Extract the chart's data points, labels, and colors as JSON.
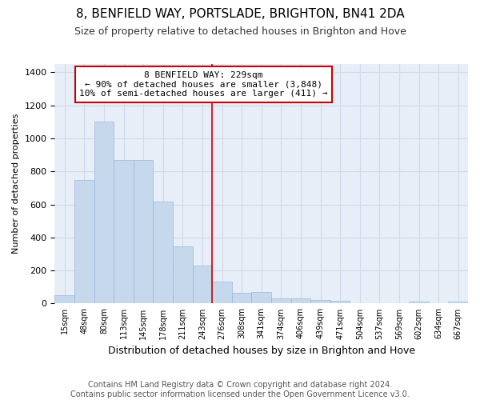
{
  "title_line1": "8, BENFIELD WAY, PORTSLADE, BRIGHTON, BN41 2DA",
  "title_line2": "Size of property relative to detached houses in Brighton and Hove",
  "xlabel": "Distribution of detached houses by size in Brighton and Hove",
  "ylabel": "Number of detached properties",
  "footnote": "Contains HM Land Registry data © Crown copyright and database right 2024.\nContains public sector information licensed under the Open Government Licence v3.0.",
  "bar_labels": [
    "15sqm",
    "48sqm",
    "80sqm",
    "113sqm",
    "145sqm",
    "178sqm",
    "211sqm",
    "243sqm",
    "276sqm",
    "308sqm",
    "341sqm",
    "374sqm",
    "406sqm",
    "439sqm",
    "471sqm",
    "504sqm",
    "537sqm",
    "569sqm",
    "602sqm",
    "634sqm",
    "667sqm"
  ],
  "bar_values": [
    50,
    750,
    1100,
    870,
    870,
    615,
    345,
    230,
    135,
    65,
    70,
    30,
    30,
    20,
    15,
    0,
    0,
    0,
    12,
    0,
    12
  ],
  "bar_color": "#c5d8ec",
  "bar_edge_color": "#9ab8d8",
  "annotation_text": "8 BENFIELD WAY: 229sqm\n← 90% of detached houses are smaller (3,848)\n10% of semi-detached houses are larger (411) →",
  "vline_x": 7.5,
  "vline_color": "#cc0000",
  "annotation_box_color": "#ffffff",
  "annotation_box_edge_color": "#cc0000",
  "ylim": [
    0,
    1450
  ],
  "yticks": [
    0,
    200,
    400,
    600,
    800,
    1000,
    1200,
    1400
  ],
  "grid_color": "#d0dae8",
  "background_color": "#e8eef8",
  "title1_fontsize": 11,
  "title2_fontsize": 9,
  "xlabel_fontsize": 9,
  "ylabel_fontsize": 8,
  "footnote_fontsize": 7
}
